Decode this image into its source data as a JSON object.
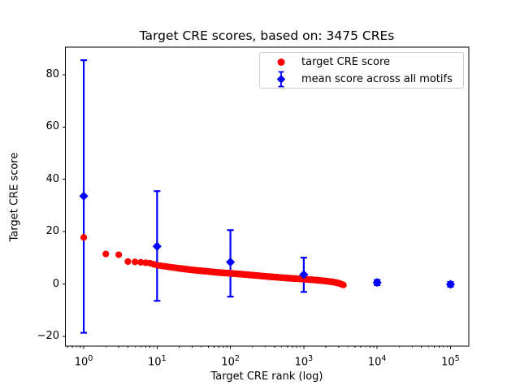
{
  "chart_data": {
    "type": "scatter",
    "title": "Target CRE scores, based on: 3475 CREs",
    "xlabel": "Target CRE rank (log)",
    "ylabel": "Target CRE score",
    "x_scale": "log",
    "x_range_log10": [
      -0.25,
      5.25
    ],
    "ylim": [
      -23.7,
      90.5
    ],
    "x_tick_exponents": [
      0,
      1,
      2,
      3,
      4,
      5
    ],
    "y_ticks": [
      -20,
      0,
      20,
      40,
      60,
      80
    ],
    "y_tick_labels": [
      "−20",
      "0",
      "20",
      "40",
      "60",
      "80"
    ],
    "n_cres": 3475,
    "grid": false,
    "legend": {
      "position": "upper right",
      "items": [
        "target CRE score",
        "mean score across all motifs"
      ]
    },
    "series": [
      {
        "name": "target CRE score",
        "marker": "circle",
        "color": "#ff0000",
        "max_rank": 3475,
        "anchors_rank_score": [
          [
            1,
            17.8
          ],
          [
            2,
            11.5
          ],
          [
            3,
            11.2
          ],
          [
            4,
            8.6
          ],
          [
            5,
            8.45
          ],
          [
            6,
            8.3
          ],
          [
            7,
            8.15
          ],
          [
            8,
            8.0
          ],
          [
            10,
            7.2
          ],
          [
            15,
            6.5
          ],
          [
            20,
            6.0
          ],
          [
            30,
            5.4
          ],
          [
            50,
            4.8
          ],
          [
            70,
            4.4
          ],
          [
            100,
            4.1
          ],
          [
            150,
            3.7
          ],
          [
            200,
            3.4
          ],
          [
            300,
            2.95
          ],
          [
            500,
            2.45
          ],
          [
            700,
            2.15
          ],
          [
            1000,
            1.9
          ],
          [
            1500,
            1.5
          ],
          [
            2000,
            1.15
          ],
          [
            2500,
            0.8
          ],
          [
            3000,
            0.35
          ],
          [
            3475,
            -0.35
          ]
        ]
      },
      {
        "name": "mean score across all motifs",
        "marker": "diamond",
        "color": "#0000ff",
        "points": [
          {
            "rank": 1,
            "mean": 33.6,
            "err_low": -18.6,
            "err_high": 85.5
          },
          {
            "rank": 10,
            "mean": 14.4,
            "err_low": -6.4,
            "err_high": 35.5
          },
          {
            "rank": 100,
            "mean": 8.4,
            "err_low": -4.8,
            "err_high": 20.6
          },
          {
            "rank": 1000,
            "mean": 3.6,
            "err_low": -3.0,
            "err_high": 10.1
          },
          {
            "rank": 10000,
            "mean": 0.6,
            "err_low": -0.4,
            "err_high": 1.6
          },
          {
            "rank": 100000,
            "mean": -0.1,
            "err_low": -1.0,
            "err_high": 0.8
          }
        ]
      }
    ]
  }
}
